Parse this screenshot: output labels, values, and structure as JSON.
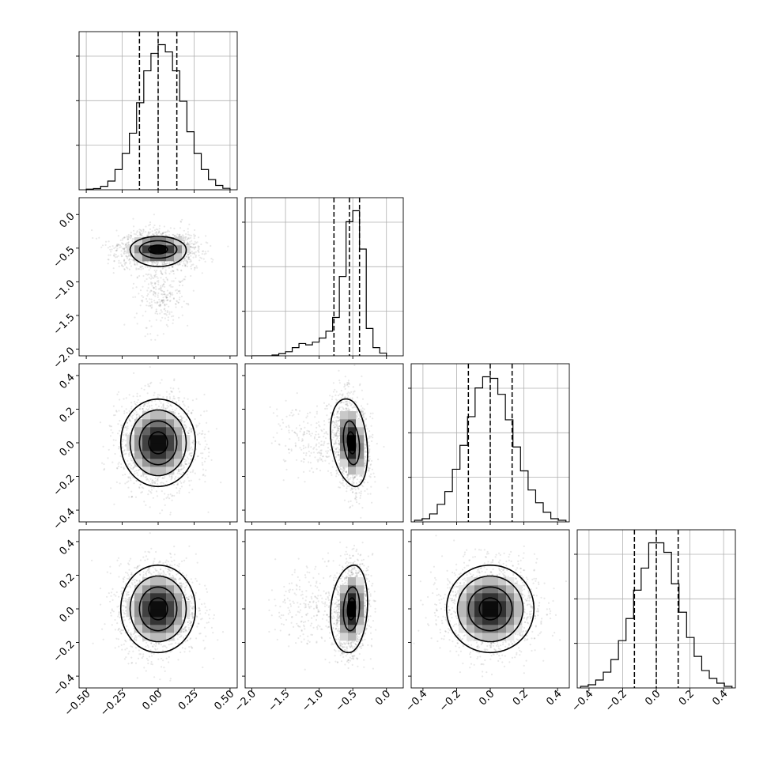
{
  "chart_data": {
    "type": "scatter",
    "description_kind": "corner-plot",
    "n_params": 4,
    "axes": [
      {
        "range": [
          -0.55,
          0.55
        ],
        "ticks": [
          -0.5,
          -0.25,
          0.0,
          0.25,
          0.5
        ],
        "tick_labels": [
          "−0.50",
          "−0.25",
          "0.00",
          "0.25",
          "0.50"
        ]
      },
      {
        "range": [
          -2.1,
          0.25
        ],
        "ticks": [
          -2.0,
          -1.5,
          -1.0,
          -0.5,
          0.0
        ],
        "tick_labels": [
          "−2.0",
          "−1.5",
          "−1.0",
          "−0.5",
          "0.0"
        ]
      },
      {
        "range": [
          -0.47,
          0.47
        ],
        "ticks": [
          -0.4,
          -0.2,
          0.0,
          0.2,
          0.4
        ],
        "tick_labels": [
          "−0.4",
          "−0.2",
          "0.0",
          "0.2",
          "0.4"
        ]
      },
      {
        "range": [
          -0.47,
          0.47
        ],
        "ticks": [
          -0.4,
          -0.2,
          0.0,
          0.2,
          0.4
        ],
        "tick_labels": [
          "−0.4",
          "−0.2",
          "0.0",
          "0.2",
          "0.4"
        ]
      }
    ],
    "histograms": [
      {
        "param": 0,
        "quantiles": [
          -0.13,
          0.0,
          0.13
        ],
        "bin_edges": [
          -0.5,
          -0.45,
          -0.4,
          -0.35,
          -0.3,
          -0.25,
          -0.2,
          -0.15,
          -0.1,
          -0.05,
          0.0,
          0.05,
          0.1,
          0.15,
          0.2,
          0.25,
          0.3,
          0.35,
          0.4,
          0.45,
          0.5
        ],
        "counts": [
          0.2,
          0.4,
          1.2,
          3.0,
          7.0,
          12.5,
          19.5,
          30.0,
          41.0,
          47.0,
          50.0,
          47.5,
          41.0,
          30.5,
          20.0,
          12.5,
          7.0,
          3.5,
          1.5,
          0.5
        ]
      },
      {
        "param": 1,
        "quantiles": [
          -0.78,
          -0.55,
          -0.4
        ],
        "bin_edges": [
          -2.0,
          -1.9,
          -1.8,
          -1.7,
          -1.6,
          -1.5,
          -1.4,
          -1.3,
          -1.2,
          -1.1,
          -1.0,
          -0.9,
          -0.8,
          -0.7,
          -0.6,
          -0.5,
          -0.4,
          -0.3,
          -0.2,
          -0.1,
          0.0
        ],
        "counts": [
          0.0,
          0.0,
          0.0,
          0.3,
          0.8,
          1.5,
          3.0,
          4.5,
          4.0,
          5.0,
          6.5,
          9.0,
          14.0,
          29.0,
          49.0,
          53.0,
          39.0,
          10.0,
          3.0,
          1.0
        ]
      },
      {
        "param": 2,
        "quantiles": [
          -0.13,
          0.0,
          0.13
        ],
        "bin_edges": [
          -0.45,
          -0.405,
          -0.36,
          -0.315,
          -0.27,
          -0.225,
          -0.18,
          -0.135,
          -0.09,
          -0.045,
          0.0,
          0.045,
          0.09,
          0.135,
          0.18,
          0.225,
          0.27,
          0.315,
          0.36,
          0.405,
          0.45
        ],
        "counts": [
          0.5,
          1.0,
          2.5,
          5.5,
          9.5,
          16.5,
          24.0,
          33.0,
          42.0,
          45.5,
          45.0,
          40.0,
          32.0,
          23.5,
          16.0,
          10.0,
          6.0,
          3.0,
          1.0,
          0.5
        ]
      },
      {
        "param": 3,
        "quantiles": [
          -0.13,
          0.0,
          0.13
        ],
        "bin_edges": [
          -0.45,
          -0.405,
          -0.36,
          -0.315,
          -0.27,
          -0.225,
          -0.18,
          -0.135,
          -0.09,
          -0.045,
          0.0,
          0.045,
          0.09,
          0.135,
          0.18,
          0.225,
          0.27,
          0.315,
          0.36,
          0.405,
          0.45
        ],
        "counts": [
          0.5,
          1.0,
          2.5,
          5.0,
          9.0,
          15.0,
          22.0,
          31.0,
          38.0,
          46.0,
          46.0,
          43.0,
          33.0,
          24.0,
          16.0,
          10.0,
          5.5,
          3.0,
          1.5,
          0.5
        ]
      }
    ],
    "joint": [
      {
        "x_param": 0,
        "y_param": 1,
        "center": [
          0.0,
          -0.52
        ],
        "sigma": [
          0.13,
          0.13
        ],
        "corr": 0.0,
        "contour_levels_sigma": [
          0.5,
          1.0,
          1.5
        ],
        "tail": {
          "center": [
            0.02,
            -1.2
          ],
          "sigma": [
            0.09,
            0.25
          ],
          "weight": 0.18
        }
      },
      {
        "x_param": 0,
        "y_param": 2,
        "center": [
          0.0,
          0.0
        ],
        "sigma": [
          0.13,
          0.13
        ],
        "corr": 0.0,
        "contour_levels_sigma": [
          0.5,
          1.0,
          1.5,
          2.0
        ]
      },
      {
        "x_param": 1,
        "y_param": 2,
        "center": [
          -0.52,
          0.0
        ],
        "sigma": [
          0.12,
          0.13
        ],
        "corr": -0.25,
        "contour_levels_sigma": [
          0.5,
          1.0,
          2.0
        ],
        "tail": {
          "center": [
            -1.05,
            0.02
          ],
          "sigma": [
            0.3,
            0.12
          ],
          "weight": 0.15
        }
      },
      {
        "x_param": 0,
        "y_param": 3,
        "center": [
          0.0,
          0.0
        ],
        "sigma": [
          0.13,
          0.13
        ],
        "corr": 0.0,
        "contour_levels_sigma": [
          0.5,
          1.0,
          1.5,
          2.0
        ]
      },
      {
        "x_param": 1,
        "y_param": 3,
        "center": [
          -0.52,
          0.0
        ],
        "sigma": [
          0.12,
          0.13
        ],
        "corr": 0.15,
        "contour_levels_sigma": [
          0.5,
          1.0,
          2.0
        ],
        "tail": {
          "center": [
            -1.05,
            0.0
          ],
          "sigma": [
            0.3,
            0.12
          ],
          "weight": 0.15
        }
      },
      {
        "x_param": 2,
        "y_param": 3,
        "center": [
          0.0,
          0.0
        ],
        "sigma": [
          0.13,
          0.13
        ],
        "corr": 0.0,
        "contour_levels_sigma": [
          0.5,
          1.0,
          1.5,
          2.0
        ]
      }
    ]
  }
}
